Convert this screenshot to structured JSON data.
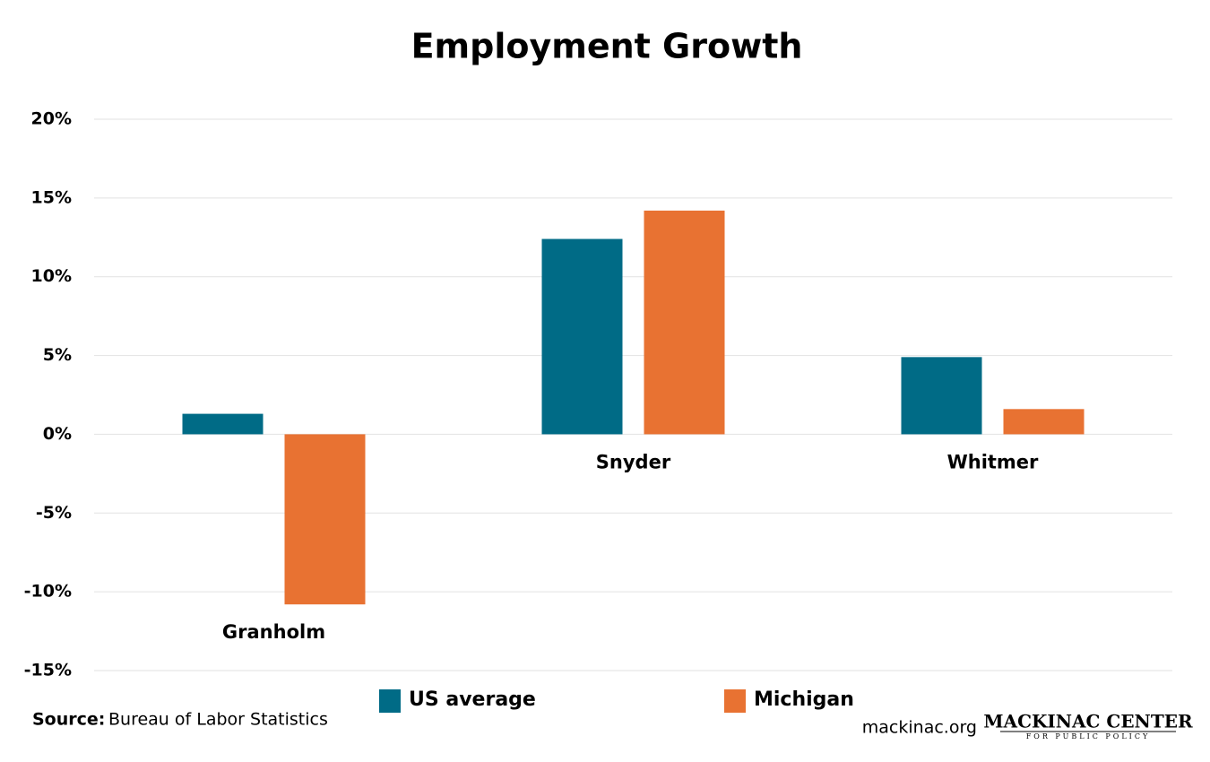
{
  "chart_data": {
    "type": "bar",
    "title": "Employment Growth",
    "categories": [
      "Granholm",
      "Snyder",
      "Whitmer"
    ],
    "series": [
      {
        "name": "US average",
        "color": "#006b86",
        "values": [
          1.3,
          12.4,
          4.9
        ]
      },
      {
        "name": "Michigan",
        "color": "#e87232",
        "values": [
          -10.8,
          14.2,
          1.6
        ]
      }
    ],
    "ylim": [
      -15,
      20
    ],
    "yticks": [
      {
        "value": -15,
        "label": "-15%"
      },
      {
        "value": -10,
        "label": "-10%"
      },
      {
        "value": -5,
        "label": "-5%"
      },
      {
        "value": 0,
        "label": "0%"
      },
      {
        "value": 5,
        "label": "5%"
      },
      {
        "value": 10,
        "label": "10%"
      },
      {
        "value": 15,
        "label": "15%"
      },
      {
        "value": 20,
        "label": "20%"
      }
    ],
    "grid": true
  },
  "footer": {
    "source_label": "Source:",
    "source": "Bureau of Labor Statistics",
    "website": "mackinac.org",
    "logo": "MACKINAC CENTER",
    "logo_subtitle": "FOR PUBLIC POLICY"
  }
}
